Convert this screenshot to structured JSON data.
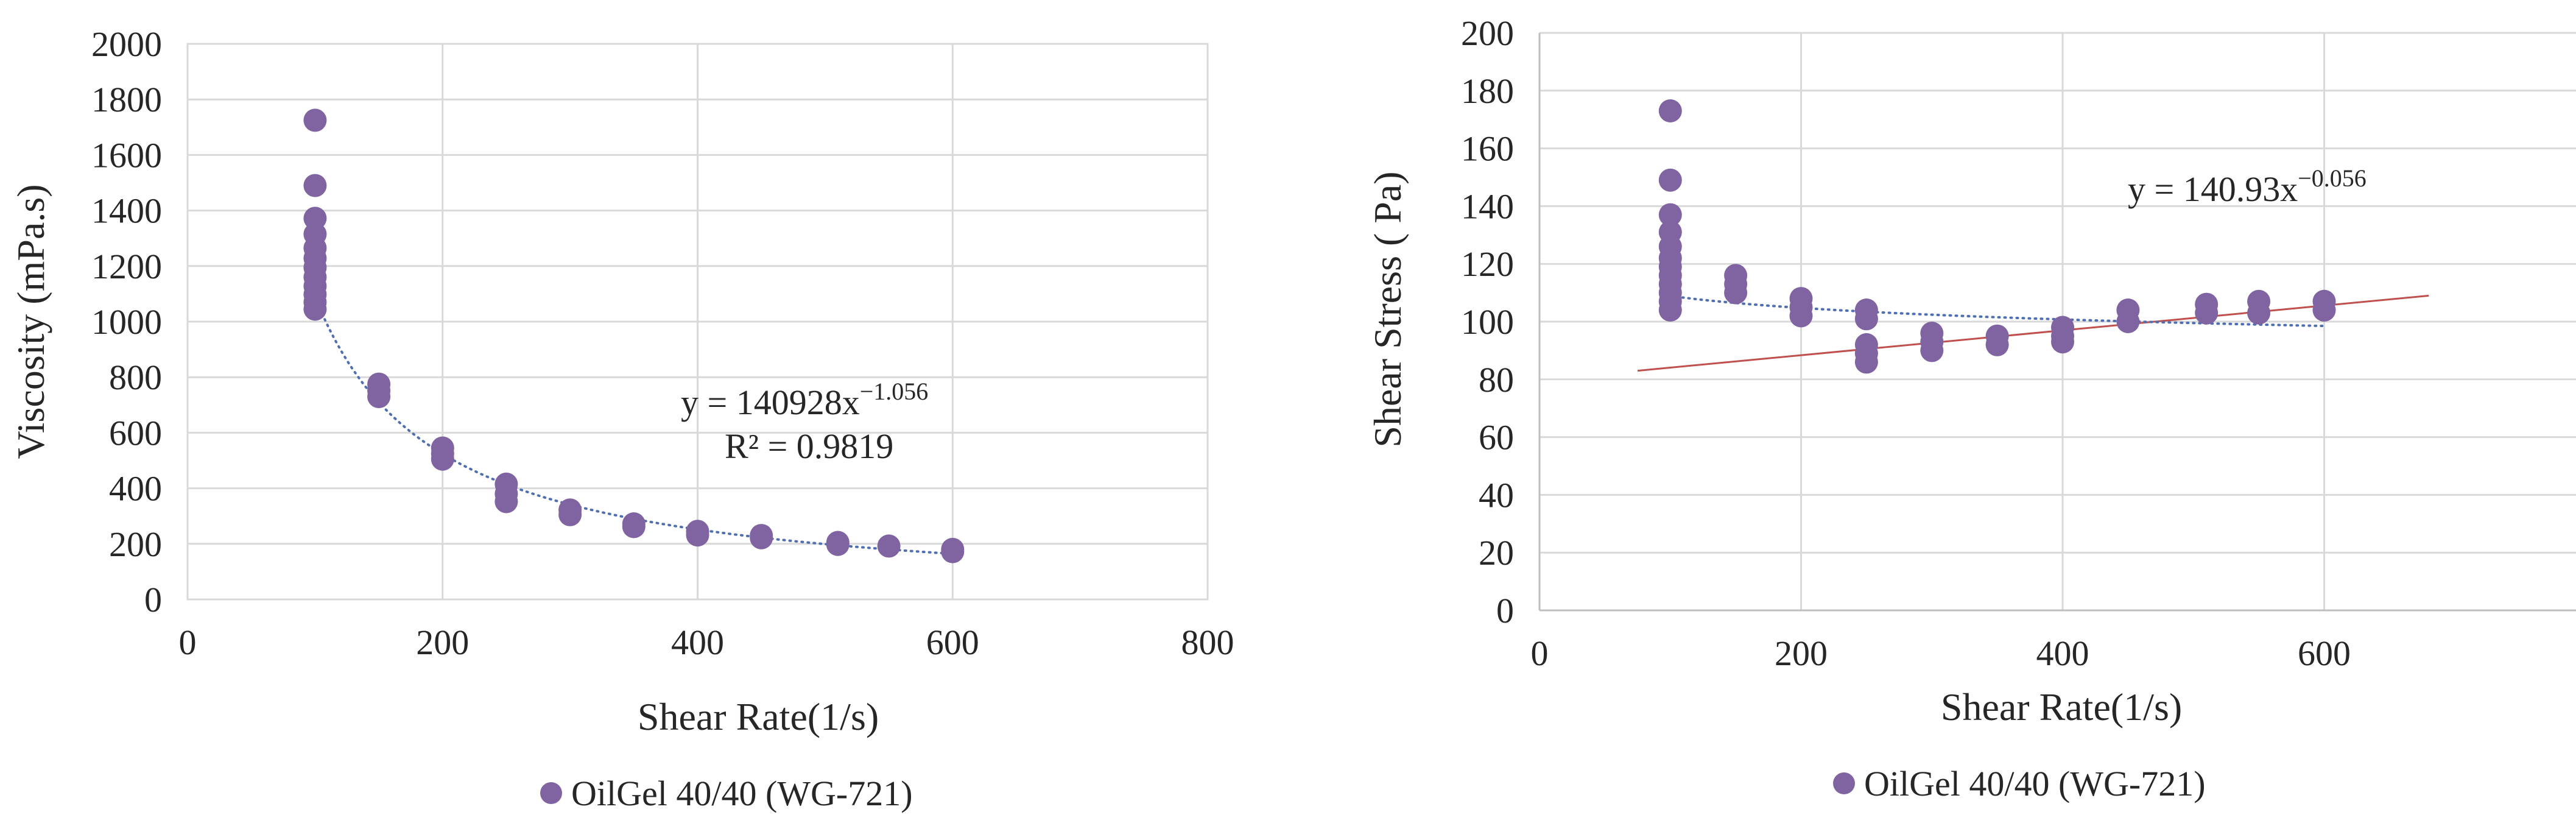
{
  "chart_data": [
    {
      "type": "scatter",
      "title": "",
      "xlabel": "Shear Rate(1/s)",
      "ylabel": "Viscosity (mPa.s)",
      "xlim": [
        0,
        800
      ],
      "ylim": [
        0,
        2000
      ],
      "x_ticks": [
        "0",
        "200",
        "400",
        "600",
        "800"
      ],
      "y_ticks": [
        "0",
        "200",
        "400",
        "600",
        "800",
        "1000",
        "1200",
        "1400",
        "1600",
        "1800",
        "2000"
      ],
      "grid": true,
      "legend": "bottom",
      "series": [
        {
          "name": "OilGel 40/40 (WG-721)",
          "color": "#8064a2",
          "points": [
            [
              100,
              1725
            ],
            [
              100,
              1490
            ],
            [
              100,
              1372
            ],
            [
              100,
              1315
            ],
            [
              100,
              1265
            ],
            [
              100,
              1228
            ],
            [
              100,
              1195
            ],
            [
              100,
              1160
            ],
            [
              100,
              1128
            ],
            [
              100,
              1098
            ],
            [
              100,
              1070
            ],
            [
              100,
              1045
            ],
            [
              150,
              775
            ],
            [
              150,
              752
            ],
            [
              150,
              730
            ],
            [
              200,
              545
            ],
            [
              200,
              525
            ],
            [
              200,
              505
            ],
            [
              250,
              415
            ],
            [
              250,
              380
            ],
            [
              250,
              352
            ],
            [
              300,
              322
            ],
            [
              300,
              305
            ],
            [
              350,
              272
            ],
            [
              350,
              262
            ],
            [
              400,
              245
            ],
            [
              400,
              232
            ],
            [
              450,
              230
            ],
            [
              450,
              222
            ],
            [
              510,
              205
            ],
            [
              510,
              198
            ],
            [
              550,
              192
            ],
            [
              600,
              180
            ],
            [
              600,
              172
            ]
          ]
        }
      ],
      "trendline": {
        "type": "power",
        "coef": 140928,
        "exp": -1.056,
        "x_range": [
          100,
          600
        ],
        "color": "#4f6fb0",
        "style": "dotted"
      },
      "annotations": [
        "y = 140928x",
        "−1.056",
        "R² = 0.9819"
      ]
    },
    {
      "type": "scatter",
      "title": "",
      "xlabel": "Shear Rate(1/s)",
      "ylabel": "Shear Stress ( Pa)",
      "xlim": [
        0,
        800
      ],
      "ylim": [
        0,
        200
      ],
      "x_ticks": [
        "0",
        "200",
        "400",
        "600"
      ],
      "y_ticks": [
        "0",
        "20",
        "40",
        "60",
        "80",
        "100",
        "120",
        "140",
        "160",
        "180",
        "200"
      ],
      "grid": true,
      "legend": "bottom",
      "series": [
        {
          "name": "OilGel 40/40 (WG-721)",
          "color": "#8064a2",
          "points": [
            [
              100,
              173
            ],
            [
              100,
              149
            ],
            [
              100,
              137
            ],
            [
              100,
              131
            ],
            [
              100,
              126
            ],
            [
              100,
              122
            ],
            [
              100,
              119
            ],
            [
              100,
              116
            ],
            [
              100,
              113
            ],
            [
              100,
              110
            ],
            [
              100,
              107
            ],
            [
              100,
              104
            ],
            [
              150,
              116
            ],
            [
              150,
              113
            ],
            [
              150,
              110
            ],
            [
              200,
              108
            ],
            [
              200,
              105
            ],
            [
              200,
              102
            ],
            [
              250,
              104
            ],
            [
              250,
              101
            ],
            [
              250,
              92
            ],
            [
              250,
              89
            ],
            [
              250,
              86
            ],
            [
              300,
              96
            ],
            [
              300,
              93
            ],
            [
              300,
              90
            ],
            [
              350,
              95
            ],
            [
              350,
              92
            ],
            [
              400,
              98
            ],
            [
              400,
              95
            ],
            [
              400,
              93
            ],
            [
              450,
              104
            ],
            [
              450,
              100
            ],
            [
              510,
              106
            ],
            [
              510,
              103
            ],
            [
              550,
              107
            ],
            [
              550,
              103
            ],
            [
              600,
              107
            ],
            [
              600,
              104
            ]
          ]
        }
      ],
      "trendline": {
        "type": "power",
        "coef": 140.93,
        "exp": -0.056,
        "x_range": [
          100,
          600
        ],
        "color": "#4f6fb0",
        "style": "dotted"
      },
      "linear_trendline": {
        "x_range": [
          75,
          680
        ],
        "y_range": [
          83,
          109
        ],
        "color": "#c0504d"
      },
      "annotations": [
        "y = 140.93x",
        "−0.056"
      ]
    }
  ]
}
